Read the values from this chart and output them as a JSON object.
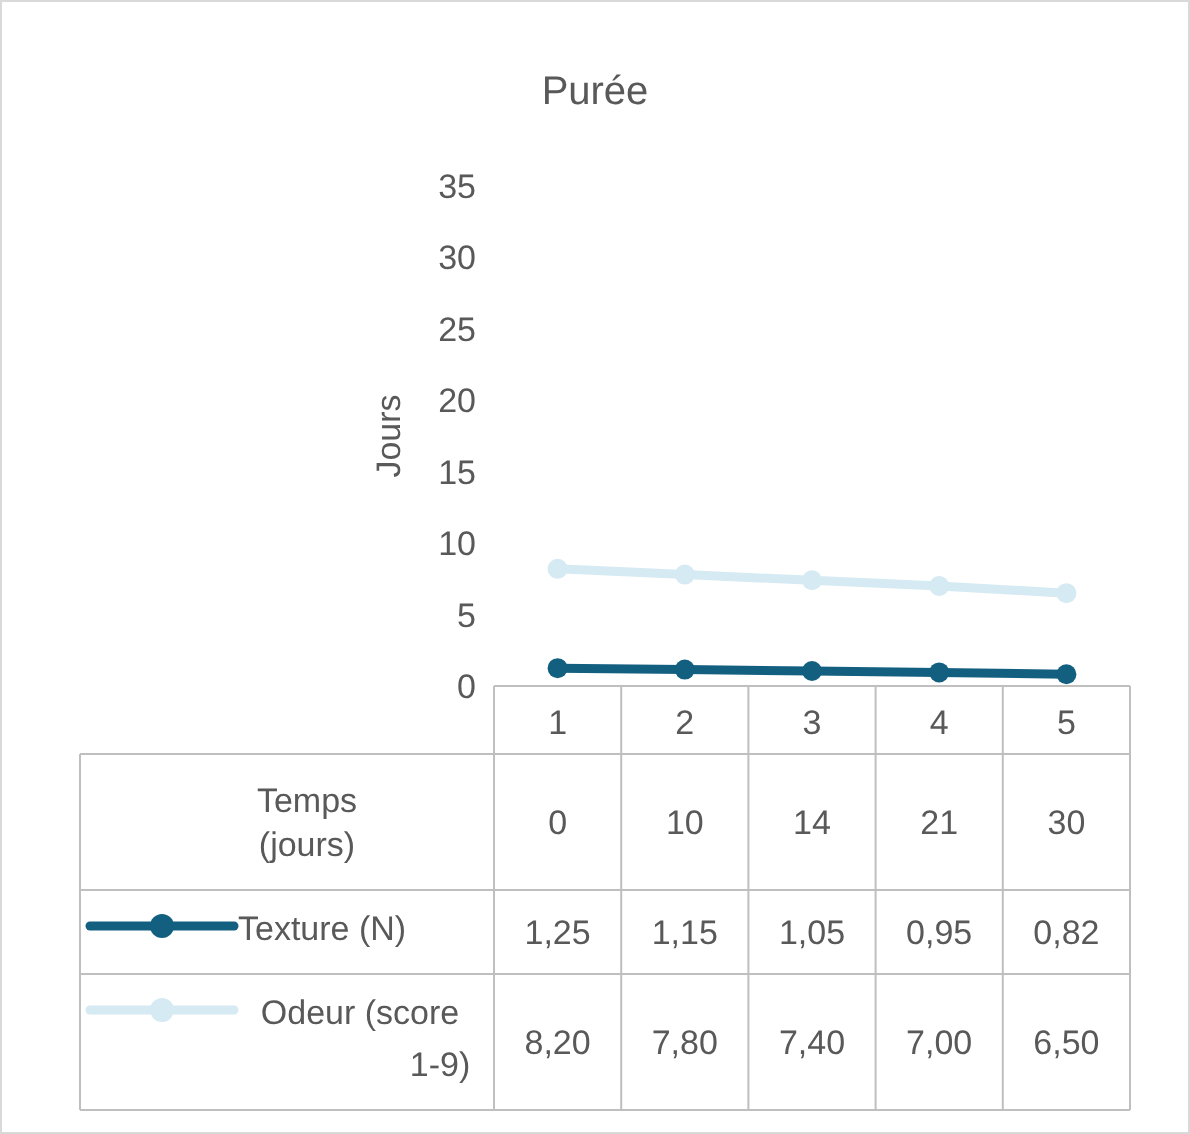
{
  "chart_data": {
    "type": "line",
    "title": "Purée",
    "ylabel": "Jours",
    "categories": [
      "1",
      "2",
      "3",
      "4",
      "5"
    ],
    "series": [
      {
        "name": "Texture (N)",
        "color": "#135f80",
        "values": [
          1.25,
          1.15,
          1.05,
          0.95,
          0.82
        ],
        "value_labels": [
          "1,25",
          "1,15",
          "1,05",
          "0,95",
          "0,82"
        ]
      },
      {
        "name": "Odeur (score 1-9)",
        "color": "#d5eaf2",
        "values": [
          8.2,
          7.8,
          7.4,
          7.0,
          6.5
        ],
        "value_labels": [
          "8,20",
          "7,80",
          "7,40",
          "7,00",
          "6,50"
        ]
      }
    ],
    "annotations": [
      "Temps (jours)",
      "0",
      "10",
      "14",
      "21",
      "30"
    ],
    "ylim": [
      0,
      35
    ],
    "yticks": [
      0,
      5,
      10,
      15,
      20,
      25,
      30,
      35
    ],
    "grid": false,
    "legend": "bottom",
    "marker": "circle",
    "line_style": "solid"
  }
}
